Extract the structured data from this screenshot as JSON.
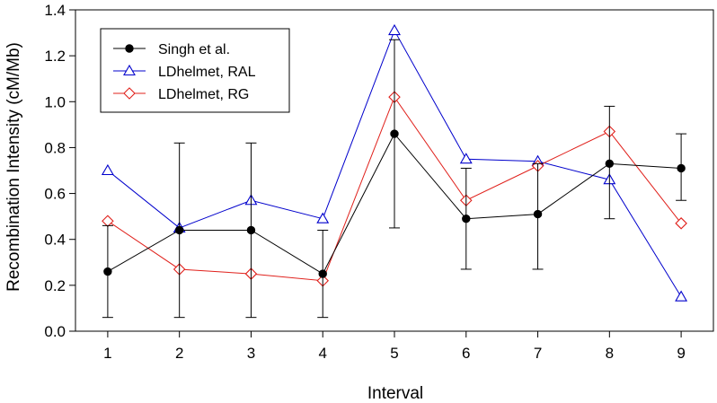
{
  "chart_data": {
    "type": "line",
    "xlabel": "Interval",
    "ylabel": "Recombination Intensity (cM/Mb)",
    "xlim": [
      0.55,
      9.45
    ],
    "ylim": [
      0,
      1.4
    ],
    "x_ticks": [
      "1",
      "2",
      "3",
      "4",
      "5",
      "6",
      "7",
      "8",
      "9"
    ],
    "y_ticks": [
      "0.0",
      "0.2",
      "0.4",
      "0.6",
      "0.8",
      "1.0",
      "1.2",
      "1.4"
    ],
    "grid": false,
    "legend_position": "top-left",
    "x": [
      1,
      2,
      3,
      4,
      5,
      6,
      7,
      8,
      9
    ],
    "series": [
      {
        "name": "Singh et al.",
        "color": "#000000",
        "marker": "filled-circle",
        "values": [
          0.26,
          0.44,
          0.44,
          0.25,
          0.86,
          0.49,
          0.51,
          0.73,
          0.71
        ],
        "error_low": [
          0.06,
          0.06,
          0.06,
          0.06,
          0.45,
          0.27,
          0.27,
          0.49,
          0.57
        ],
        "error_high": [
          0.46,
          0.82,
          0.82,
          0.44,
          1.27,
          0.71,
          0.73,
          0.98,
          0.86
        ]
      },
      {
        "name": "LDhelmet, RAL",
        "color": "#0000cc",
        "marker": "open-triangle",
        "values": [
          0.7,
          0.45,
          0.57,
          0.49,
          1.31,
          0.75,
          0.74,
          0.66,
          0.15
        ]
      },
      {
        "name": "LDhelmet, RG",
        "color": "#e0201b",
        "marker": "open-diamond",
        "values": [
          0.48,
          0.27,
          0.25,
          0.22,
          1.02,
          0.57,
          0.72,
          0.87,
          0.47
        ]
      }
    ]
  }
}
